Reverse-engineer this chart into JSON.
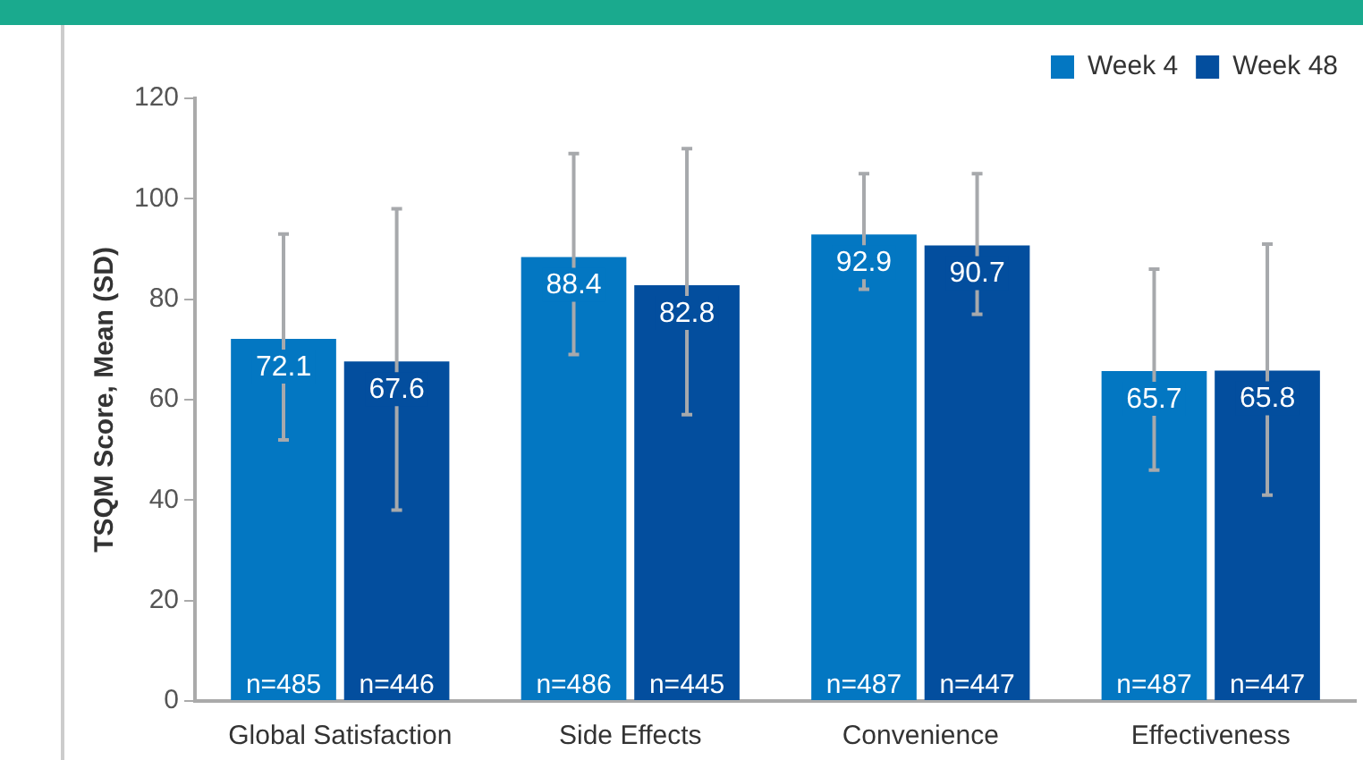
{
  "chart_data": {
    "type": "bar",
    "ylabel": "TSQM Score, Mean (SD)",
    "categories": [
      "Global Satisfaction",
      "Side Effects",
      "Convenience",
      "Effectiveness"
    ],
    "series": [
      {
        "name": "Week 4",
        "color": "#0377c2",
        "values": [
          72.1,
          88.4,
          92.9,
          65.7
        ],
        "errors": [
          [
            52,
            93
          ],
          [
            69,
            109
          ],
          [
            82,
            105
          ],
          [
            46,
            86
          ]
        ]
      },
      {
        "name": "Week 48",
        "color": "#034e9e",
        "values": [
          67.6,
          82.8,
          90.7,
          65.8
        ],
        "errors": [
          [
            38,
            98
          ],
          [
            57,
            110
          ],
          [
            77,
            105
          ],
          [
            41,
            91
          ]
        ]
      }
    ],
    "ylim": [
      0,
      120
    ],
    "yticks": [
      0,
      20,
      40,
      60,
      80,
      100,
      120
    ],
    "legend": "top right",
    "data_labels": true,
    "annotations": [
      {
        "text": "n=485",
        "x": "Global Satisfaction",
        "y": 0
      },
      {
        "text": "n=446",
        "x": "Global Satisfaction",
        "y": 0
      },
      {
        "text": "n=486",
        "x": "Side Effects",
        "y": 0
      },
      {
        "text": "n=445",
        "x": "Side Effects",
        "y": 0
      },
      {
        "text": "n=487",
        "x": "Convenience",
        "y": 0
      },
      {
        "text": "n=447",
        "x": "Convenience",
        "y": 0
      },
      {
        "text": "n=487",
        "x": "Effectiveness",
        "y": 0
      },
      {
        "text": "n=447",
        "x": "Effectiveness",
        "y": 0
      }
    ]
  }
}
